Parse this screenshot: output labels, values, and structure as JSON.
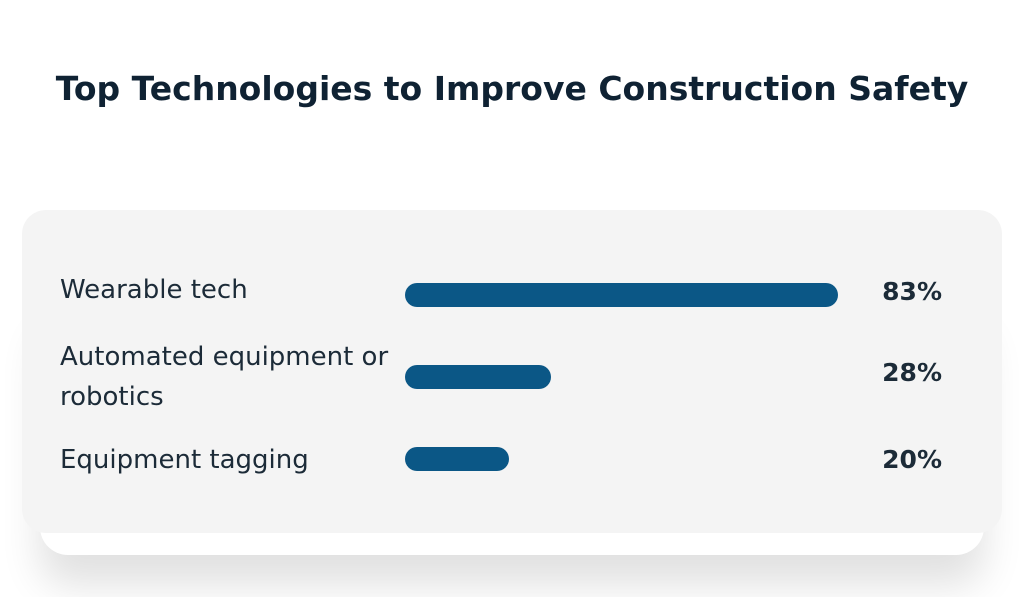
{
  "chart_data": {
    "type": "bar",
    "orientation": "horizontal",
    "title": "Top Technologies to Improve Construction Safety",
    "categories": [
      "Wearable tech",
      "Automated equipment or robotics",
      "Equipment tagging"
    ],
    "values": [
      83,
      28,
      20
    ],
    "value_labels": [
      "83%",
      "28%",
      "20%"
    ],
    "unit": "%",
    "xlim": [
      0,
      83
    ],
    "grid": false,
    "colors": {
      "bar": "#0b5786",
      "card_background": "#f4f4f4",
      "text": "#1c2b38",
      "title": "#0f2233"
    }
  }
}
